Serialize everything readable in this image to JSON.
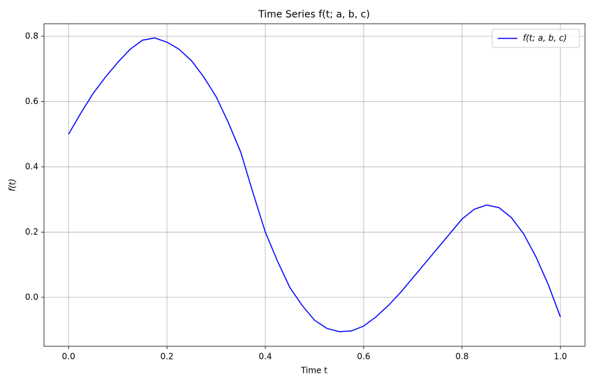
{
  "chart_data": {
    "type": "line",
    "title": "Time Series f(t; a, b, c)",
    "x_label": "Time t",
    "y_label": "f(t)",
    "x": [
      0,
      0.025,
      0.05,
      0.075,
      0.1,
      0.125,
      0.15,
      0.175,
      0.2,
      0.225,
      0.25,
      0.275,
      0.3,
      0.325,
      0.35,
      0.375,
      0.4,
      0.425,
      0.45,
      0.475,
      0.5,
      0.525,
      0.55,
      0.575,
      0.6,
      0.625,
      0.65,
      0.675,
      0.7,
      0.725,
      0.75,
      0.775,
      0.8,
      0.825,
      0.85,
      0.875,
      0.9,
      0.925,
      0.95,
      0.975,
      1.0
    ],
    "series": [
      {
        "name": "f(t; a, b, c)",
        "color": "#0000ff",
        "values": [
          0.5,
          0.565,
          0.625,
          0.675,
          0.72,
          0.76,
          0.788,
          0.795,
          0.782,
          0.76,
          0.725,
          0.675,
          0.615,
          0.535,
          0.445,
          0.32,
          0.2,
          0.11,
          0.03,
          -0.025,
          -0.07,
          -0.095,
          -0.105,
          -0.103,
          -0.088,
          -0.06,
          -0.025,
          0.015,
          0.06,
          0.105,
          0.15,
          0.195,
          0.24,
          0.27,
          0.283,
          0.275,
          0.245,
          0.195,
          0.125,
          0.04,
          -0.06
        ]
      }
    ],
    "xlim": [
      -0.05,
      1.05
    ],
    "ylim": [
      -0.15,
      0.8385
    ],
    "xticks": [
      {
        "value": 0,
        "label": "0.0"
      },
      0.2,
      0.4,
      0.6,
      0.8,
      {
        "value": 1,
        "label": "1.0"
      }
    ],
    "yticks": [
      {
        "value": 0,
        "label": "0.0"
      },
      0.2,
      0.4,
      0.6,
      0.8
    ],
    "grid": true,
    "legend": "upper-right"
  }
}
